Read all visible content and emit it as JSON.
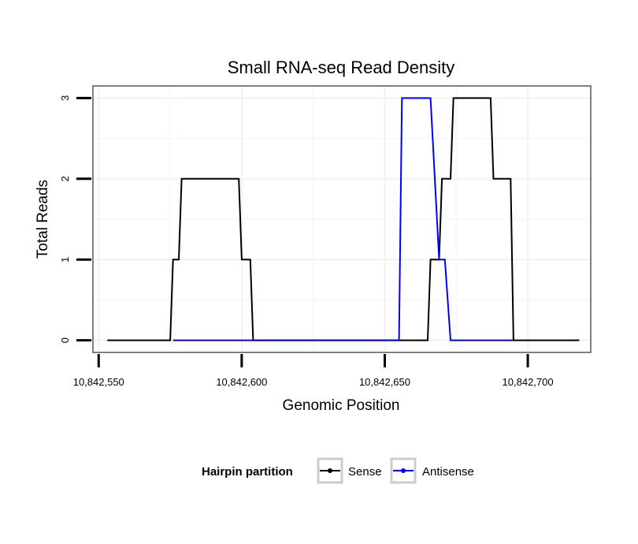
{
  "chart_data": {
    "type": "line",
    "title": "Small RNA-seq Read Density",
    "xlabel": "Genomic Position",
    "ylabel": "Total Reads",
    "xlim": [
      10842548,
      10842722
    ],
    "ylim": [
      -0.15,
      3.15
    ],
    "x_ticks": [
      10842550,
      10842600,
      10842650,
      10842700
    ],
    "x_tick_labels": [
      "10,842,550",
      "10,842,600",
      "10,842,650",
      "10,842,700"
    ],
    "y_ticks": [
      0,
      1,
      2,
      3
    ],
    "y_tick_labels": [
      "0",
      "1",
      "2",
      "3"
    ],
    "grid": true,
    "legend": {
      "title": "Hairpin partition",
      "position": "bottom",
      "entries": [
        {
          "name": "Sense",
          "color": "#000000"
        },
        {
          "name": "Antisense",
          "color": "#0000ff"
        }
      ]
    },
    "series": [
      {
        "name": "Sense",
        "color": "#000000",
        "points": [
          [
            10842553,
            0
          ],
          [
            10842575,
            0
          ],
          [
            10842576,
            1
          ],
          [
            10842578,
            1
          ],
          [
            10842579,
            2
          ],
          [
            10842599,
            2
          ],
          [
            10842600,
            1
          ],
          [
            10842603,
            1
          ],
          [
            10842604,
            0
          ],
          [
            10842665,
            0
          ],
          [
            10842666,
            1
          ],
          [
            10842669,
            1
          ],
          [
            10842670,
            2
          ],
          [
            10842673,
            2
          ],
          [
            10842674,
            3
          ],
          [
            10842687,
            3
          ],
          [
            10842688,
            2
          ],
          [
            10842694,
            2
          ],
          [
            10842695,
            0
          ],
          [
            10842718,
            0
          ]
        ]
      },
      {
        "name": "Antisense",
        "color": "#0000ff",
        "points": [
          [
            10842576,
            0
          ],
          [
            10842604,
            0
          ],
          [
            10842655,
            0
          ],
          [
            10842656,
            3
          ],
          [
            10842666,
            3
          ],
          [
            10842669,
            1
          ],
          [
            10842671,
            1
          ],
          [
            10842673,
            0
          ],
          [
            10842695,
            0
          ]
        ]
      }
    ]
  }
}
